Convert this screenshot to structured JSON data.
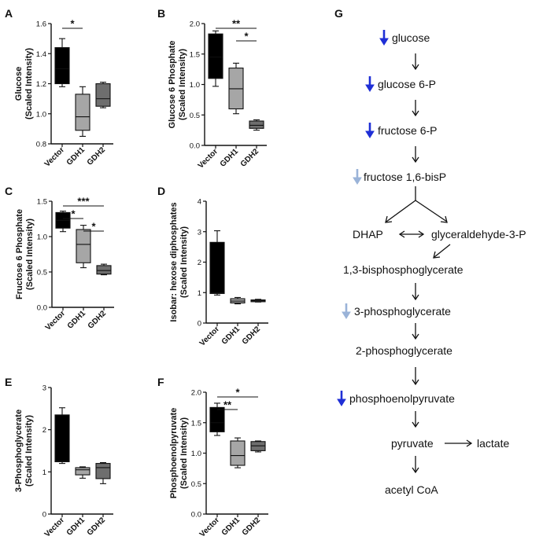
{
  "chart_data": [
    {
      "panel": "A",
      "type": "box",
      "ylabel": [
        "Glucose",
        "(Scaled Intensity)"
      ],
      "ylim": [
        0.8,
        1.6
      ],
      "yticks": [
        "0.8",
        "1.0",
        "1.2",
        "1.4",
        "1.6"
      ],
      "categories": [
        "Vector",
        "GDH1",
        "GDH2"
      ],
      "boxes": [
        {
          "category": "Vector",
          "min": 1.18,
          "q1": 1.2,
          "median": 1.3,
          "q3": 1.44,
          "max": 1.5,
          "color": "#000000"
        },
        {
          "category": "GDH1",
          "min": 0.85,
          "q1": 0.89,
          "median": 0.98,
          "q3": 1.13,
          "max": 1.18,
          "color": "#a6a6a6"
        },
        {
          "category": "GDH2",
          "min": 1.04,
          "q1": 1.05,
          "median": 1.1,
          "q3": 1.2,
          "max": 1.21,
          "color": "#6e6e6e"
        }
      ],
      "significance": [
        {
          "from": 0,
          "to": 1,
          "label": "*"
        }
      ]
    },
    {
      "panel": "B",
      "type": "box",
      "ylabel": [
        "Glucose 6 Phosphate",
        "(Scaled Intensity)"
      ],
      "ylim": [
        0.0,
        2.0
      ],
      "yticks": [
        "0.0",
        "0.5",
        "1.0",
        "1.5",
        "2.0"
      ],
      "categories": [
        "Vector",
        "GDH1",
        "GDH2"
      ],
      "boxes": [
        {
          "category": "Vector",
          "min": 0.97,
          "q1": 1.1,
          "median": 1.45,
          "q3": 1.83,
          "max": 1.88,
          "color": "#000000"
        },
        {
          "category": "GDH1",
          "min": 0.52,
          "q1": 0.6,
          "median": 0.93,
          "q3": 1.27,
          "max": 1.35,
          "color": "#a6a6a6"
        },
        {
          "category": "GDH2",
          "min": 0.25,
          "q1": 0.28,
          "median": 0.33,
          "q3": 0.4,
          "max": 0.42,
          "color": "#6e6e6e"
        }
      ],
      "significance": [
        {
          "from": 0,
          "to": 2,
          "label": "**"
        },
        {
          "from": 1,
          "to": 2,
          "label": "*"
        }
      ]
    },
    {
      "panel": "C",
      "type": "box",
      "ylabel": [
        "Fructose 6 Phosphate",
        "(Scaled Intensity)"
      ],
      "ylim": [
        0.0,
        1.5
      ],
      "yticks": [
        "0.0",
        "0.5",
        "1.0",
        "1.5"
      ],
      "categories": [
        "Vector",
        "GDH1",
        "GDH2"
      ],
      "boxes": [
        {
          "category": "Vector",
          "min": 1.07,
          "q1": 1.12,
          "median": 1.23,
          "q3": 1.34,
          "max": 1.36,
          "color": "#000000"
        },
        {
          "category": "GDH1",
          "min": 0.56,
          "q1": 0.63,
          "median": 0.89,
          "q3": 1.1,
          "max": 1.16,
          "color": "#a6a6a6"
        },
        {
          "category": "GDH2",
          "min": 0.46,
          "q1": 0.47,
          "median": 0.52,
          "q3": 0.59,
          "max": 0.61,
          "color": "#6e6e6e"
        }
      ],
      "significance": [
        {
          "from": 0,
          "to": 2,
          "label": "***"
        },
        {
          "from": 0,
          "to": 1,
          "label": "*"
        },
        {
          "from": 1,
          "to": 2,
          "label": "*"
        }
      ]
    },
    {
      "panel": "D",
      "type": "box",
      "ylabel": [
        "Isobar: hexose diphosphates",
        "(Scaled Intensity)"
      ],
      "ylim": [
        0,
        4
      ],
      "yticks": [
        "0",
        "1",
        "2",
        "3",
        "4"
      ],
      "categories": [
        "Vector",
        "GDH1",
        "GDH2"
      ],
      "boxes": [
        {
          "category": "Vector",
          "min": 0.92,
          "q1": 0.97,
          "median": 0.99,
          "q3": 2.65,
          "max": 3.03,
          "color": "#000000"
        },
        {
          "category": "GDH1",
          "min": 0.63,
          "q1": 0.66,
          "median": 0.72,
          "q3": 0.8,
          "max": 0.84,
          "color": "#a6a6a6"
        },
        {
          "category": "GDH2",
          "min": 0.69,
          "q1": 0.7,
          "median": 0.73,
          "q3": 0.76,
          "max": 0.78,
          "color": "#6e6e6e"
        }
      ],
      "significance": []
    },
    {
      "panel": "E",
      "type": "box",
      "ylabel": [
        "3-Phosphoglycerate",
        "(Scaled Intensity)"
      ],
      "ylim": [
        0,
        3
      ],
      "yticks": [
        "0",
        "1",
        "2",
        "3"
      ],
      "categories": [
        "Vector",
        "GDH1",
        "GDH2"
      ],
      "boxes": [
        {
          "category": "Vector",
          "min": 1.2,
          "q1": 1.24,
          "median": 1.26,
          "q3": 2.35,
          "max": 2.52,
          "color": "#000000"
        },
        {
          "category": "GDH1",
          "min": 0.85,
          "q1": 0.93,
          "median": 1.05,
          "q3": 1.1,
          "max": 1.12,
          "color": "#a6a6a6"
        },
        {
          "category": "GDH2",
          "min": 0.72,
          "q1": 0.84,
          "median": 1.1,
          "q3": 1.2,
          "max": 1.22,
          "color": "#6e6e6e"
        }
      ],
      "significance": []
    },
    {
      "panel": "F",
      "type": "box",
      "ylabel": [
        "Phosphoenolpyruvate",
        "(Scaled Intensity)"
      ],
      "ylim": [
        0.0,
        2.0
      ],
      "yticks": [
        "0.0",
        "0.5",
        "1.0",
        "1.5",
        "2.0"
      ],
      "categories": [
        "Vector",
        "GDH1",
        "GDH2"
      ],
      "boxes": [
        {
          "category": "Vector",
          "min": 1.29,
          "q1": 1.35,
          "median": 1.5,
          "q3": 1.75,
          "max": 1.82,
          "color": "#000000"
        },
        {
          "category": "GDH1",
          "min": 0.76,
          "q1": 0.8,
          "median": 0.96,
          "q3": 1.2,
          "max": 1.25,
          "color": "#a6a6a6"
        },
        {
          "category": "GDH2",
          "min": 1.02,
          "q1": 1.04,
          "median": 1.12,
          "q3": 1.19,
          "max": 1.2,
          "color": "#6e6e6e"
        }
      ],
      "significance": [
        {
          "from": 0,
          "to": 2,
          "label": "*"
        },
        {
          "from": 0,
          "to": 1,
          "label": "**"
        }
      ]
    }
  ],
  "pathway": {
    "panel": "G",
    "arrow_colors": {
      "decrease_strong": "#1f2fd6",
      "decrease_weak": "#9ab3d8"
    },
    "nodes": [
      {
        "id": "glucose",
        "label": "glucose",
        "change": "decrease_strong"
      },
      {
        "id": "g6p",
        "label": "glucose 6-P",
        "change": "decrease_strong"
      },
      {
        "id": "f6p",
        "label": "fructose 6-P",
        "change": "decrease_strong"
      },
      {
        "id": "f16bp",
        "label": "fructose 1,6-bisP",
        "change": "decrease_weak"
      },
      {
        "id": "dhap",
        "label": "DHAP",
        "change": ""
      },
      {
        "id": "g3p",
        "label": "glyceraldehyde-3-P",
        "change": ""
      },
      {
        "id": "bpg",
        "label": "1,3-bisphosphoglycerate",
        "change": ""
      },
      {
        "id": "pg3",
        "label": "3-phosphoglycerate",
        "change": "decrease_weak"
      },
      {
        "id": "pg2",
        "label": "2-phosphoglycerate",
        "change": ""
      },
      {
        "id": "pep",
        "label": "phosphoenolpyruvate",
        "change": "decrease_strong"
      },
      {
        "id": "pyr",
        "label": "pyruvate",
        "change": ""
      },
      {
        "id": "lac",
        "label": "lactate",
        "change": ""
      },
      {
        "id": "acoa",
        "label": "acetyl CoA",
        "change": ""
      }
    ]
  }
}
